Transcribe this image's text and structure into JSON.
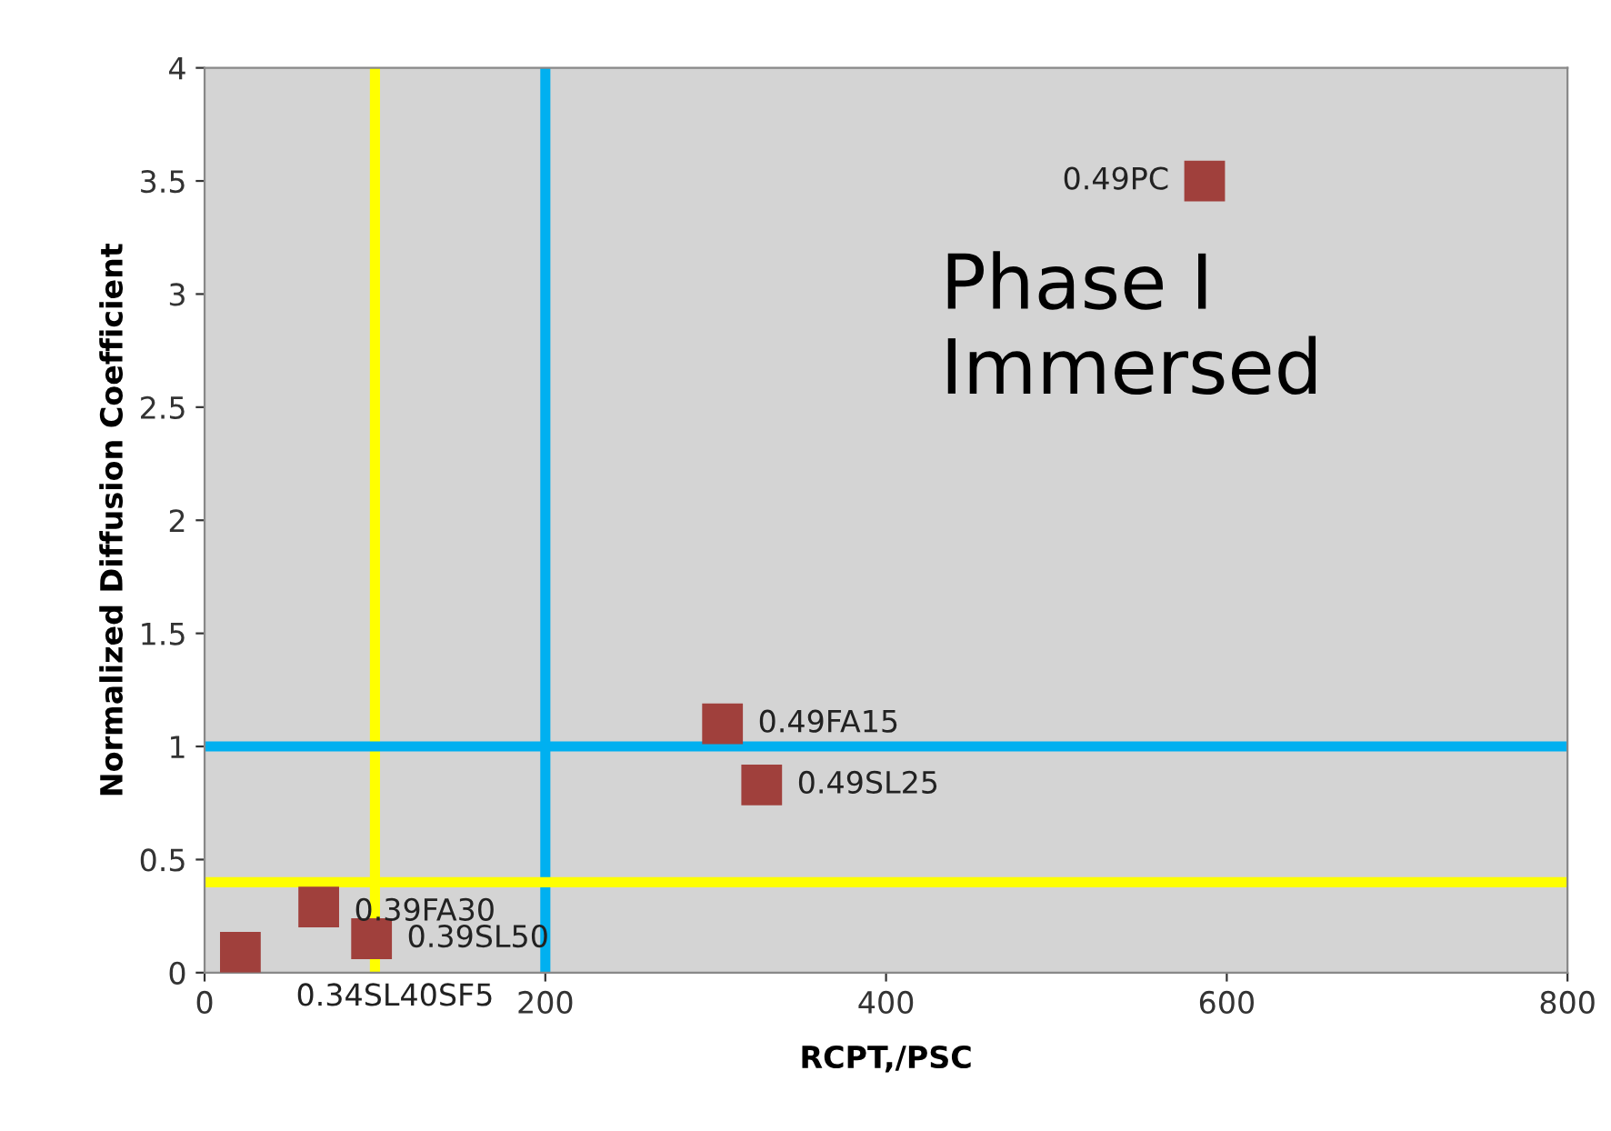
{
  "chart_data": {
    "type": "scatter",
    "xlabel": "RCPT,/PSC",
    "ylabel": "Normalized Diffusion Coefficient",
    "x": [
      587,
      304,
      327,
      67,
      98,
      21
    ],
    "values": [
      3.5,
      1.1,
      0.83,
      0.29,
      0.15,
      0.09
    ],
    "color": "#a0403c",
    "marker": "square",
    "xlim": [
      0,
      800
    ],
    "xticks": [
      0,
      200,
      400,
      600,
      800
    ],
    "ylim": [
      0,
      4
    ],
    "yticks": [
      0,
      0.5,
      1,
      1.5,
      2,
      2.5,
      3,
      3.5,
      4
    ],
    "grid": false,
    "ref_lines": [
      {
        "axis": "x",
        "value": 100,
        "color": "#ffff00"
      },
      {
        "axis": "x",
        "value": 200,
        "color": "#00b0f0"
      },
      {
        "axis": "y",
        "value": 1,
        "color": "#00b0f0"
      },
      {
        "axis": "y",
        "value": 0.4,
        "color": "#ffff00"
      }
    ],
    "annotations": [
      {
        "text": "0.49PC",
        "x": 587,
        "y": 3.5
      },
      {
        "text": "0.49FA15",
        "x": 304,
        "y": 1.1
      },
      {
        "text": "0.49SL25",
        "x": 327,
        "y": 0.83
      },
      {
        "text": "0.39FA30",
        "x": 67,
        "y": 0.29
      },
      {
        "text": "0.39SL50",
        "x": 98,
        "y": 0.15
      },
      {
        "text": "0.34SL40SF5",
        "x": 21,
        "y": 0.09
      },
      "Phase I\nImmersed"
    ]
  }
}
